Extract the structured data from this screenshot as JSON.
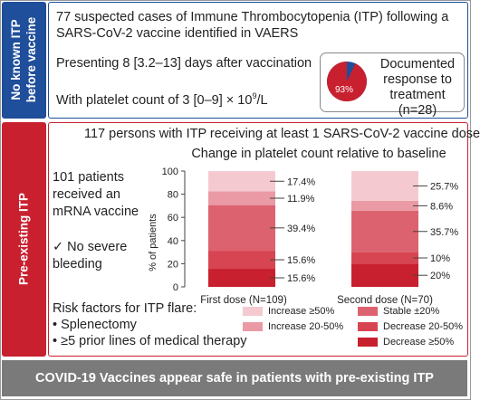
{
  "top": {
    "side_label_line1": "No known ITP",
    "side_label_line2": "before vaccine",
    "line1": "77 suspected cases of Immune Thrombocytopenia (ITP) following a",
    "line2": "SARS-CoV-2 vaccine identified in VAERS",
    "line3": "Presenting 8 [3.2–13] days after vaccination",
    "line4_pre": "With platelet count of 3 [0–9] × 10",
    "line4_sup": "9",
    "line4_post": "/L",
    "response": {
      "percent_label": "93%",
      "percent_value": 93,
      "text_line1": "Documented",
      "text_line2": "response to",
      "text_line3": "treatment (n=28)",
      "colors": {
        "responded": "#c9202f",
        "other": "#1f4e9a"
      }
    }
  },
  "middle": {
    "side_label": "Pre-existing ITP",
    "title": "117 persons with ITP receiving at least 1 SARS-CoV-2 vaccine dose",
    "left_line1": "101 patients",
    "left_line2": "received an",
    "left_line3": "mRNA vaccine",
    "no_bleeding_line1": "✓ No severe",
    "no_bleeding_line2": "bleeding",
    "risk_title": "Risk factors for ITP flare:",
    "risk_items": [
      "• Splenectomy",
      "• ≥5 prior lines of medical therapy"
    ]
  },
  "bottom": {
    "banner": "COVID-19 Vaccines appear safe in patients with pre-existing ITP"
  },
  "chart_data": {
    "type": "bar",
    "stacked": true,
    "title": "Change in platelet count relative to baseline",
    "ylabel": "% of patients",
    "ylim": [
      0,
      100
    ],
    "yticks": [
      "0",
      "20",
      "40",
      "60",
      "80",
      "100"
    ],
    "categories": [
      "First dose (N=109)",
      "Second dose (N=70)"
    ],
    "series": [
      {
        "name": "Decrease ≥50%",
        "color": "#c8202e",
        "values": [
          15.6,
          20
        ],
        "labels": [
          "15.6%",
          "20%"
        ]
      },
      {
        "name": "Decrease 20-50%",
        "color": "#d84552",
        "values": [
          15.6,
          10
        ],
        "labels": [
          "15.6%",
          "10%"
        ]
      },
      {
        "name": "Stable ±20%",
        "color": "#dd6270",
        "values": [
          39.4,
          35.7
        ],
        "labels": [
          "39.4%",
          "35.7%"
        ]
      },
      {
        "name": "Increase 20-50%",
        "color": "#ea9aa4",
        "values": [
          11.9,
          8.6
        ],
        "labels": [
          "11.9%",
          "8.6%"
        ]
      },
      {
        "name": "Increase ≥50%",
        "color": "#f4cad0",
        "values": [
          17.4,
          25.7
        ],
        "labels": [
          "17.4%",
          "25.7%"
        ]
      }
    ]
  }
}
